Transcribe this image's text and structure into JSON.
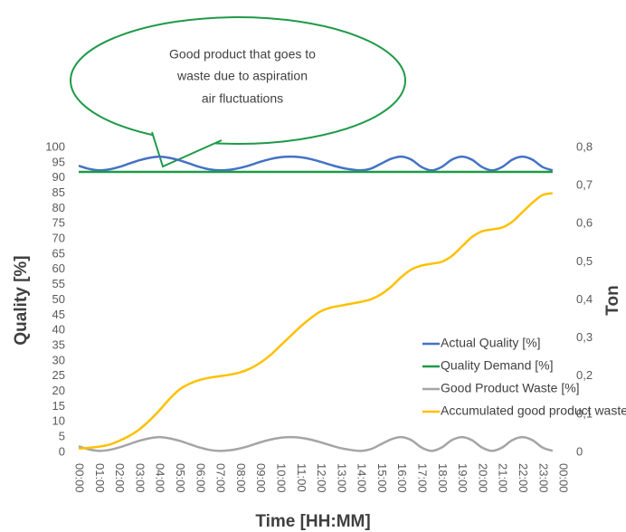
{
  "callout": {
    "lines": [
      "Good product that goes to",
      "waste due to aspiration",
      "air fluctuations"
    ]
  },
  "chart_data": {
    "type": "line",
    "xlabel": "Time [HH:MM]",
    "ylabel": "Quality [%]",
    "y2label": "Ton",
    "x": [
      0,
      0.5,
      1,
      1.5,
      2,
      2.5,
      3,
      3.5,
      4,
      4.5,
      5,
      5.5,
      6,
      6.5,
      7,
      7.5,
      8,
      8.5,
      9,
      9.5,
      10,
      10.5,
      11,
      11.5,
      12,
      12.5,
      13,
      13.5,
      14,
      14.5,
      15,
      15.5,
      16,
      16.5,
      17,
      17.5,
      18,
      18.5,
      19,
      19.5,
      20,
      20.5,
      21,
      21.5,
      22,
      22.5,
      23,
      23.5
    ],
    "xlim": [
      0,
      24
    ],
    "xticks": [
      {
        "value": 0,
        "label": "00:00"
      },
      {
        "value": 1,
        "label": "01:00"
      },
      {
        "value": 2,
        "label": "02:00"
      },
      {
        "value": 3,
        "label": "03:00"
      },
      {
        "value": 4,
        "label": "04:00"
      },
      {
        "value": 5,
        "label": "05:00"
      },
      {
        "value": 6,
        "label": "06:00"
      },
      {
        "value": 7,
        "label": "07:00"
      },
      {
        "value": 8,
        "label": "08:00"
      },
      {
        "value": 9,
        "label": "09:00"
      },
      {
        "value": 10,
        "label": "10:00"
      },
      {
        "value": 11,
        "label": "11:00"
      },
      {
        "value": 12,
        "label": "12:00"
      },
      {
        "value": 13,
        "label": "13:00"
      },
      {
        "value": 14,
        "label": "14:00"
      },
      {
        "value": 15,
        "label": "15:00"
      },
      {
        "value": 16,
        "label": "16:00"
      },
      {
        "value": 17,
        "label": "17:00"
      },
      {
        "value": 18,
        "label": "18:00"
      },
      {
        "value": 19,
        "label": "19:00"
      },
      {
        "value": 20,
        "label": "20:00"
      },
      {
        "value": 21,
        "label": "21:00"
      },
      {
        "value": 22,
        "label": "22:00"
      },
      {
        "value": 23,
        "label": "23:00"
      },
      {
        "value": 24,
        "label": "00:00"
      }
    ],
    "ylim": [
      0,
      100
    ],
    "yticks": [
      0,
      5,
      10,
      15,
      20,
      25,
      30,
      35,
      40,
      45,
      50,
      55,
      60,
      65,
      70,
      75,
      80,
      85,
      90,
      95,
      100
    ],
    "y2lim": [
      0,
      0.8
    ],
    "y2ticks": [
      0,
      {
        "value": 0.1,
        "label": "0,1"
      },
      {
        "value": 0.2,
        "label": "0,2"
      },
      {
        "value": 0.3,
        "label": "0,3"
      },
      {
        "value": 0.4,
        "label": "0,4"
      },
      {
        "value": 0.5,
        "label": "0,5"
      },
      {
        "value": 0.6,
        "label": "0,6"
      },
      {
        "value": 0.7,
        "label": "0,7"
      },
      {
        "value": 0.8,
        "label": "0,8"
      }
    ],
    "series": [
      {
        "name": "Actual Quality [%]",
        "color": "#4472c4",
        "values": [
          94,
          93,
          92.5,
          92.8,
          93.6,
          94.7,
          95.8,
          96.6,
          97,
          96.6,
          95.8,
          94.7,
          93.6,
          92.8,
          92.5,
          92.7,
          93.3,
          94.2,
          95.3,
          96.2,
          96.8,
          97,
          96.8,
          96.2,
          95.3,
          94.3,
          93.4,
          92.8,
          92.5,
          93.1,
          94.7,
          96.3,
          97,
          96,
          93.6,
          92.5,
          93.6,
          96,
          97,
          96,
          93.6,
          92.5,
          93.6,
          96,
          97,
          96,
          93.6,
          92.5
        ]
      },
      {
        "name": "Quality Demand [%]",
        "color": "#1e9a48",
        "values": [
          92,
          92,
          92,
          92,
          92,
          92,
          92,
          92,
          92,
          92,
          92,
          92,
          92,
          92,
          92,
          92,
          92,
          92,
          92,
          92,
          92,
          92,
          92,
          92,
          92,
          92,
          92,
          92,
          92,
          92,
          92,
          92,
          92,
          92,
          92,
          92,
          92,
          92,
          92,
          92,
          92,
          92,
          92,
          92,
          92,
          92,
          92,
          92
        ]
      },
      {
        "name": "Good Product Waste [%]",
        "color": "#a5a5a5",
        "values": [
          2,
          1,
          0.5,
          0.8,
          1.6,
          2.7,
          3.8,
          4.6,
          5,
          4.6,
          3.8,
          2.7,
          1.6,
          0.8,
          0.5,
          0.7,
          1.3,
          2.2,
          3.3,
          4.2,
          4.8,
          5,
          4.8,
          4.2,
          3.3,
          2.3,
          1.4,
          0.8,
          0.5,
          1.1,
          2.7,
          4.3,
          5,
          4,
          1.6,
          0.5,
          1.6,
          4,
          5,
          4,
          1.6,
          0.5,
          1.6,
          4,
          5,
          4,
          1.6,
          0.5
        ]
      },
      {
        "name": "Accumulated good product waste [T]",
        "color": "#ffc000",
        "axis": "y2",
        "values": [
          0.01,
          0.012,
          0.015,
          0.02,
          0.03,
          0.043,
          0.06,
          0.083,
          0.11,
          0.14,
          0.165,
          0.18,
          0.19,
          0.196,
          0.2,
          0.204,
          0.21,
          0.22,
          0.235,
          0.255,
          0.28,
          0.305,
          0.33,
          0.352,
          0.37,
          0.38,
          0.385,
          0.39,
          0.395,
          0.402,
          0.415,
          0.435,
          0.46,
          0.48,
          0.49,
          0.495,
          0.5,
          0.515,
          0.54,
          0.565,
          0.58,
          0.585,
          0.59,
          0.605,
          0.63,
          0.655,
          0.675,
          0.68
        ]
      }
    ]
  }
}
